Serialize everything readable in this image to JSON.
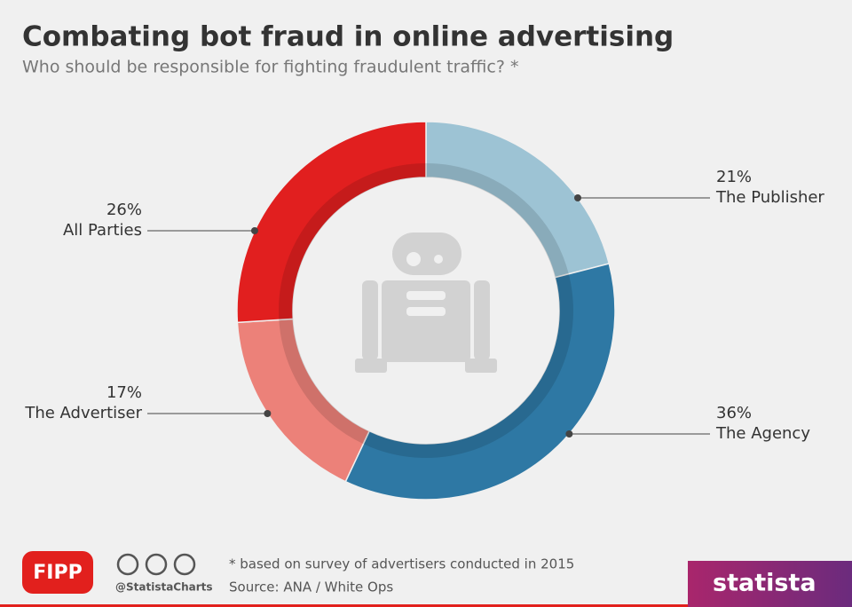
{
  "chart_data": {
    "type": "pie",
    "donut": true,
    "title": "Combating bot fraud in online advertising",
    "subtitle": "Who should be responsible for fighting fraudulent traffic? *",
    "categories": [
      "The Publisher",
      "The Agency",
      "The Advertiser",
      "All Parties"
    ],
    "values": [
      21,
      36,
      17,
      26
    ],
    "value_labels": [
      "21%",
      "36%",
      "17%",
      "26%"
    ],
    "colors": [
      "#9dc3d4",
      "#2e78a4",
      "#ec8179",
      "#e11f1f"
    ],
    "footnote": "* based on survey of advertisers conducted in 2015",
    "source": "Source: ANA / White Ops"
  },
  "branding": {
    "partner": "FIPP",
    "handle": "@StatistaCharts",
    "logo": "statista"
  }
}
